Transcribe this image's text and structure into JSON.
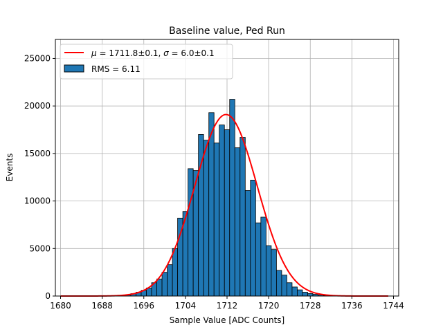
{
  "chart_data": {
    "type": "bar",
    "title": "Baseline value, Ped Run",
    "xlabel": "Sample Value [ADC Counts]",
    "ylabel": "Events",
    "xlim": [
      1679,
      1745
    ],
    "ylim": [
      0,
      27000
    ],
    "xticks": [
      1680,
      1688,
      1696,
      1704,
      1712,
      1720,
      1728,
      1736,
      1744
    ],
    "yticks": [
      0,
      5000,
      10000,
      15000,
      20000,
      25000
    ],
    "grid": true,
    "legend_position": "top-left",
    "bin_width": 1,
    "bins": [
      {
        "x": 1693,
        "y": 100
      },
      {
        "x": 1694,
        "y": 250
      },
      {
        "x": 1695,
        "y": 400
      },
      {
        "x": 1696,
        "y": 600
      },
      {
        "x": 1697,
        "y": 850
      },
      {
        "x": 1698,
        "y": 1400
      },
      {
        "x": 1699,
        "y": 1800
      },
      {
        "x": 1700,
        "y": 2500
      },
      {
        "x": 1701,
        "y": 3300
      },
      {
        "x": 1702,
        "y": 5000
      },
      {
        "x": 1703,
        "y": 8200
      },
      {
        "x": 1704,
        "y": 8900
      },
      {
        "x": 1705,
        "y": 13400
      },
      {
        "x": 1706,
        "y": 13200
      },
      {
        "x": 1707,
        "y": 17000
      },
      {
        "x": 1708,
        "y": 16400
      },
      {
        "x": 1709,
        "y": 19300
      },
      {
        "x": 1710,
        "y": 16100
      },
      {
        "x": 1711,
        "y": 18000
      },
      {
        "x": 1712,
        "y": 17500
      },
      {
        "x": 1713,
        "y": 20700
      },
      {
        "x": 1714,
        "y": 15600
      },
      {
        "x": 1715,
        "y": 16700
      },
      {
        "x": 1716,
        "y": 11100
      },
      {
        "x": 1717,
        "y": 12200
      },
      {
        "x": 1718,
        "y": 7700
      },
      {
        "x": 1719,
        "y": 8300
      },
      {
        "x": 1720,
        "y": 5300
      },
      {
        "x": 1721,
        "y": 4900
      },
      {
        "x": 1722,
        "y": 2700
      },
      {
        "x": 1723,
        "y": 2200
      },
      {
        "x": 1724,
        "y": 1400
      },
      {
        "x": 1725,
        "y": 950
      },
      {
        "x": 1726,
        "y": 650
      },
      {
        "x": 1727,
        "y": 400
      },
      {
        "x": 1728,
        "y": 260
      },
      {
        "x": 1729,
        "y": 180
      },
      {
        "x": 1730,
        "y": 100
      },
      {
        "x": 1731,
        "y": 60
      },
      {
        "x": 1732,
        "y": 30
      }
    ],
    "fit": {
      "mu": 1711.8,
      "sigma": 6.0,
      "amplitude": 19100,
      "x_range": [
        1680,
        1743
      ],
      "color": "#ff0000"
    },
    "bar_color": "#1f77b4",
    "bar_edge_color": "#000000",
    "legend": [
      {
        "type": "line",
        "color": "#ff0000",
        "prefix": "μ",
        "eq1": " = 1711.8±0.1, ",
        "sigma": "σ",
        "eq2": " = 6.0±0.1"
      },
      {
        "type": "patch",
        "color": "#1f77b4",
        "label": "RMS = 6.11"
      }
    ]
  }
}
